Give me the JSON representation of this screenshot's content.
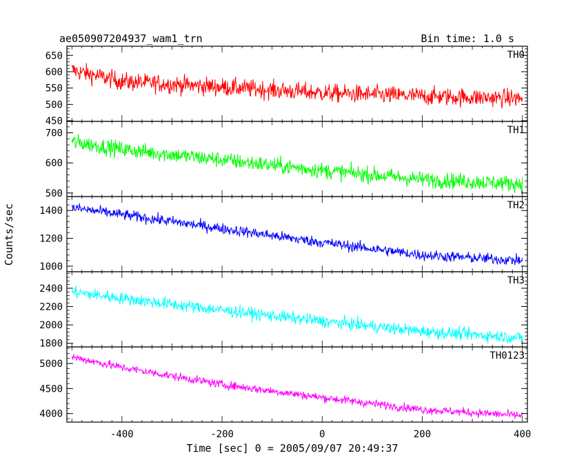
{
  "chart_data": {
    "type": "line",
    "title_left": "ae050907204937_wam1_trn",
    "title_right": "Bin time: 1.0 s",
    "xlabel": "Time [sec] 0 = 2005/09/07 20:49:37",
    "ylabel": "Counts/sec",
    "xlim": [
      -510,
      410
    ],
    "xticks": [
      -400,
      -200,
      0,
      200,
      400
    ],
    "grid": false,
    "panels": [
      {
        "name": "TH0",
        "color": "#ff0000",
        "ylim": [
          448,
          678
        ],
        "yticks": [
          450,
          500,
          550,
          600,
          650
        ],
        "trend": {
          "x": [
            -500,
            -400,
            -200,
            0,
            200,
            400
          ],
          "y": [
            605,
            570,
            553,
            535,
            525,
            518
          ]
        },
        "noise": 25
      },
      {
        "name": "TH1",
        "color": "#00ff00",
        "ylim": [
          488,
          738
        ],
        "yticks": [
          500,
          600,
          700
        ],
        "trend": {
          "x": [
            -500,
            -400,
            -200,
            0,
            200,
            400
          ],
          "y": [
            670,
            645,
            610,
            575,
            545,
            530
          ]
        },
        "noise": 24
      },
      {
        "name": "TH2",
        "color": "#0000ff",
        "ylim": [
          960,
          1500
        ],
        "yticks": [
          1000,
          1200,
          1400
        ],
        "trend": {
          "x": [
            -500,
            -400,
            -200,
            0,
            200,
            400
          ],
          "y": [
            1420,
            1370,
            1270,
            1170,
            1080,
            1040
          ]
        },
        "noise": 35
      },
      {
        "name": "TH3",
        "color": "#00ffff",
        "ylim": [
          1760,
          2580
        ],
        "yticks": [
          1800,
          2000,
          2200,
          2400
        ],
        "trend": {
          "x": [
            -500,
            -400,
            -200,
            0,
            200,
            400
          ],
          "y": [
            2360,
            2290,
            2160,
            2040,
            1930,
            1860
          ]
        },
        "noise": 60
      },
      {
        "name": "TH0123",
        "color": "#ff00ff",
        "ylim": [
          3830,
          5330
        ],
        "yticks": [
          4000,
          4500,
          5000
        ],
        "trend": {
          "x": [
            -500,
            -400,
            -200,
            0,
            200,
            400
          ],
          "y": [
            5130,
            4920,
            4580,
            4320,
            4080,
            3960
          ]
        },
        "noise": 75
      }
    ]
  }
}
